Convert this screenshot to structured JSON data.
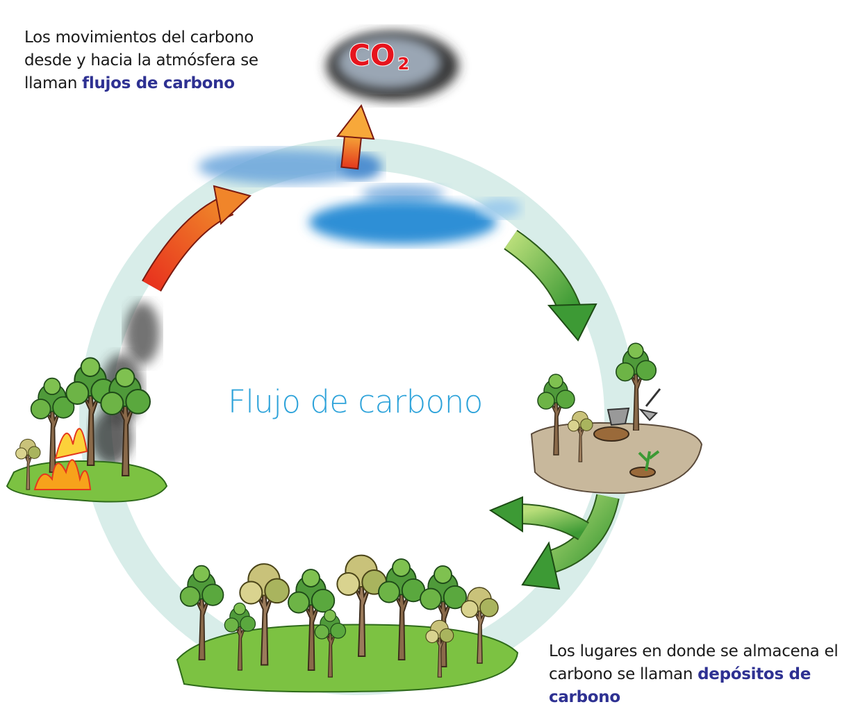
{
  "top_note": {
    "text": "Los movimientos del carbono desde y hacia la atmósfera se llaman",
    "highlight": "flujos de carbono"
  },
  "cloud_label": {
    "main": "CO",
    "subscript": "2"
  },
  "center_title": "Flujo de carbono",
  "bottom_note": {
    "text": "Los lugares en donde se almacena el carbono se llaman",
    "highlight": "depósitos de carbono"
  }
}
